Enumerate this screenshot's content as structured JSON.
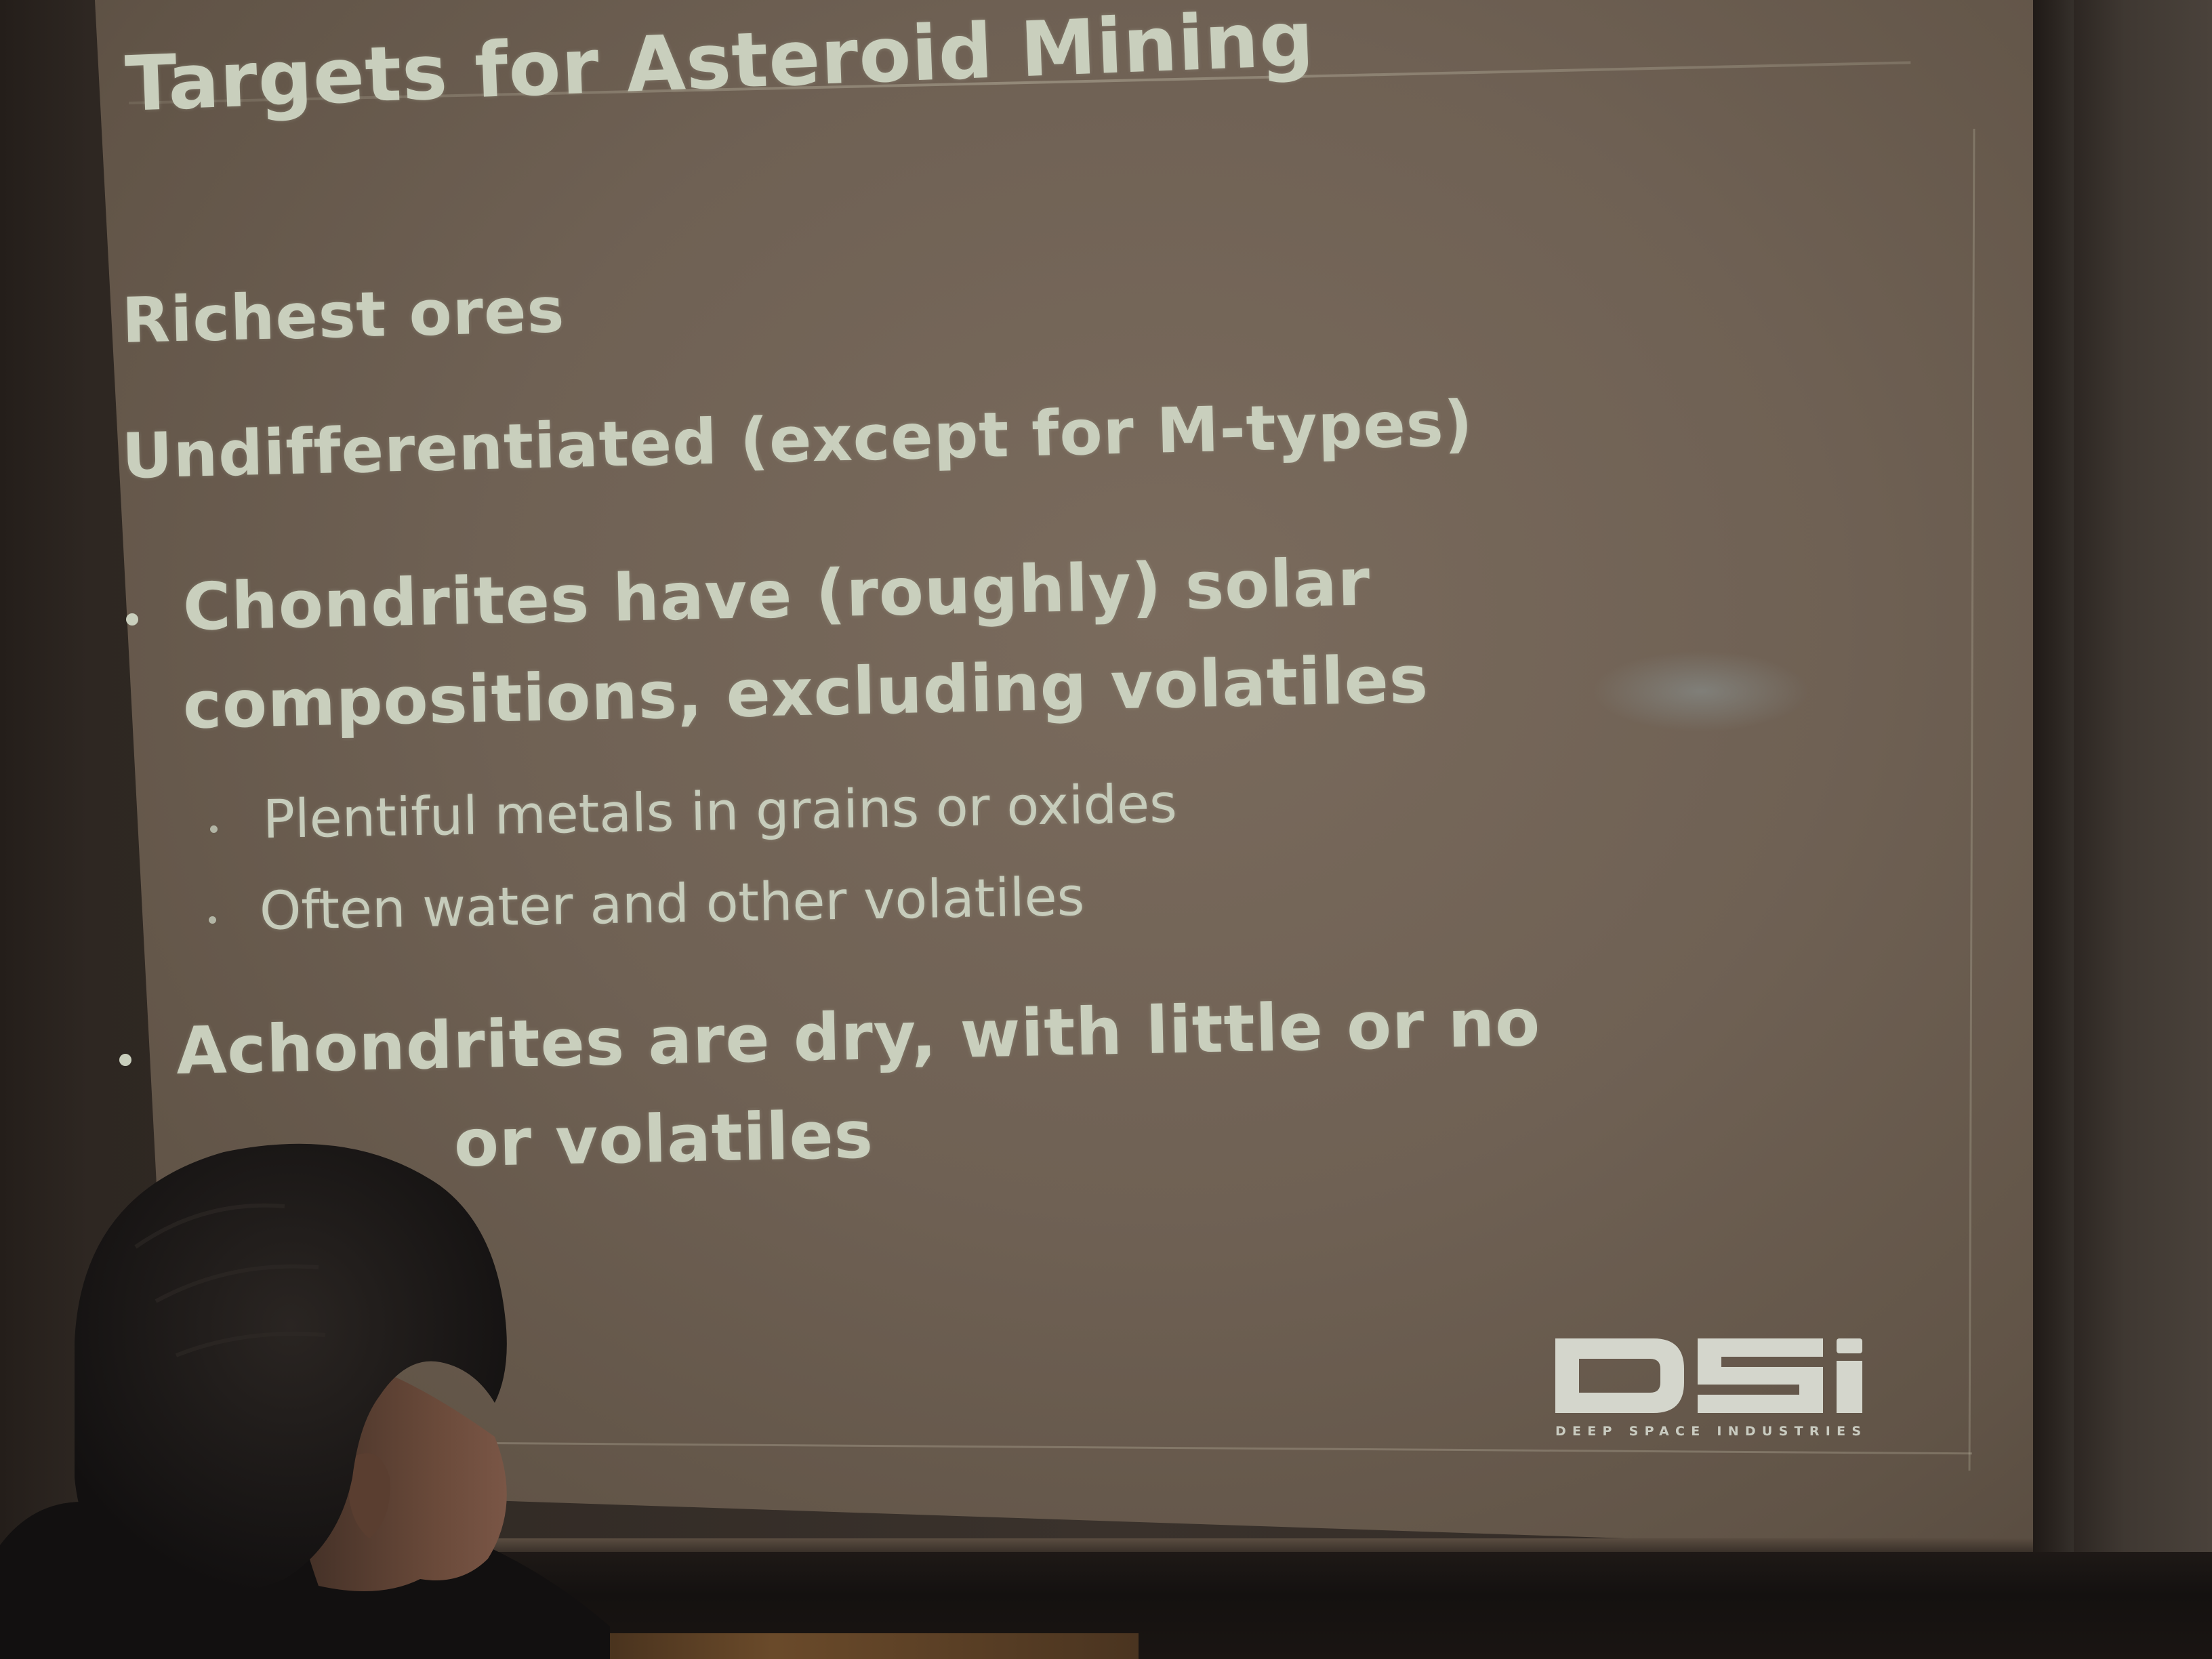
{
  "slide": {
    "title": "Targets for Asteroid Mining",
    "heading_1": "Richest ores",
    "heading_2": "Undifferentiated (except for M-types)",
    "bullet_1": {
      "line_1": "Chondrites have (roughly) solar",
      "line_2": "compositions, excluding volatiles",
      "sub_items": [
        "Plentiful metals in grains or oxides",
        "Often water and other volatiles"
      ]
    },
    "bullet_2": {
      "line_1": "Achondrites are dry, with little or no",
      "line_2_visible": "or volatiles"
    },
    "logo": {
      "name": "DSi",
      "tagline": "DEEP SPACE INDUSTRIES"
    }
  },
  "colors": {
    "screen": "#6f6154",
    "text": "#c9cfbd",
    "room": "#2a2420"
  }
}
